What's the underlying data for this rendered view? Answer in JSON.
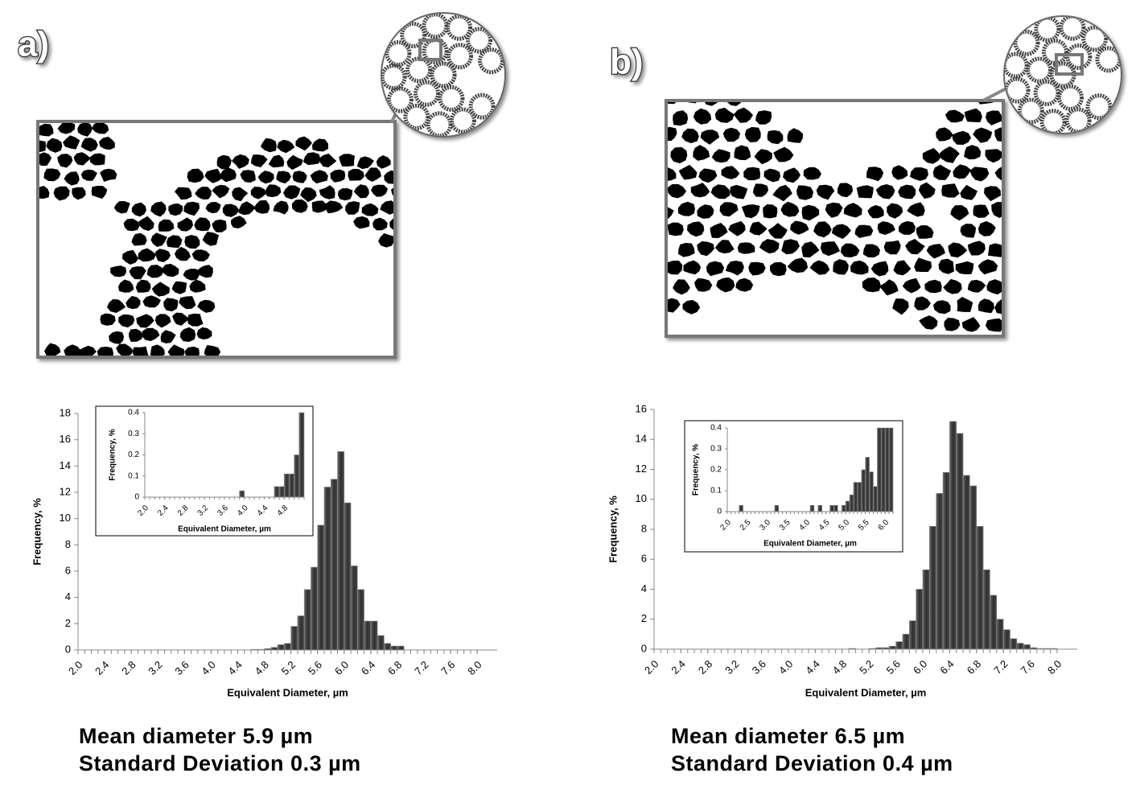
{
  "panels": [
    {
      "label": "a)",
      "caption": [
        "Mean diameter 5.9 µm",
        "Standard Deviation 0.3 µm"
      ]
    },
    {
      "label": "b)",
      "caption": [
        "Mean diameter 6.5 µm",
        "Standard Deviation 0.4 µm"
      ]
    }
  ],
  "chart_data": [
    {
      "type": "histogram",
      "color": "#3b3b3b",
      "xlabel": "Equivalent Diameter, µm",
      "ylabel": "Frequency, %",
      "bins": [
        2,
        2.1,
        2.2,
        2.3,
        2.4,
        2.5,
        2.6,
        2.7,
        2.8,
        2.9,
        3,
        3.1,
        3.2,
        3.3,
        3.4,
        3.5,
        3.6,
        3.7,
        3.8,
        3.9,
        4,
        4.1,
        4.2,
        4.3,
        4.4,
        4.5,
        4.6,
        4.7,
        4.8,
        4.9,
        5,
        5.1,
        5.2,
        5.3,
        5.4,
        5.5,
        5.6,
        5.7,
        5.8,
        5.9,
        6,
        6.1,
        6.2,
        6.3,
        6.4,
        6.5,
        6.6,
        6.7,
        6.8,
        6.9,
        7,
        7.1,
        7.2,
        7.3,
        7.4,
        7.5,
        7.6,
        7.7,
        7.8,
        7.9,
        8
      ],
      "values": [
        0,
        0,
        0,
        0,
        0,
        0,
        0,
        0,
        0,
        0,
        0,
        0,
        0,
        0,
        0,
        0,
        0,
        0,
        0,
        0,
        0,
        0,
        0,
        0,
        0,
        0,
        0.05,
        0.05,
        0.1,
        0.2,
        0.4,
        0.5,
        1.8,
        2.6,
        4.6,
        6.3,
        9.5,
        12.4,
        13.0,
        15.1,
        11.2,
        6.4,
        4.6,
        2.2,
        2.2,
        1.1,
        0.5,
        0.3,
        0.3,
        0,
        0,
        0,
        0,
        0,
        0,
        0,
        0,
        0,
        0,
        0
      ],
      "xlim": [
        2,
        8.3
      ],
      "ylim": [
        0,
        18
      ],
      "xticks": [
        {
          "value": 2,
          "label": "2.0"
        },
        2.4,
        2.8,
        3.2,
        3.6,
        {
          "value": 4,
          "label": "4.0"
        },
        4.4,
        4.8,
        5.2,
        5.6,
        {
          "value": 6,
          "label": "6.0"
        },
        6.4,
        6.8,
        7.2,
        7.6,
        {
          "value": 8,
          "label": "8.0"
        }
      ],
      "yticks": [
        0,
        2,
        4,
        6,
        8,
        10,
        12,
        14,
        16,
        18
      ]
    },
    {
      "type": "histogram",
      "color": "#3b3b3b",
      "xlabel": "Equivalent Diameter, µm",
      "ylabel": "Frequency, %",
      "bins": [
        2,
        2.1,
        2.2,
        2.3,
        2.4,
        2.5,
        2.6,
        2.7,
        2.8,
        2.9,
        3,
        3.1,
        3.2,
        3.3,
        3.4,
        3.5,
        3.6,
        3.7,
        3.8,
        3.9,
        4,
        4.1,
        4.2,
        4.3,
        4.4,
        4.5,
        4.6,
        4.7,
        4.8,
        4.9,
        5,
        5.1,
        5.2
      ],
      "values": [
        0,
        0,
        0,
        0,
        0,
        0,
        0,
        0,
        0,
        0,
        0,
        0,
        0,
        0,
        0,
        0,
        0,
        0,
        0,
        0.03,
        0,
        0,
        0,
        0,
        0,
        0,
        0.05,
        0.05,
        0.11,
        0.11,
        0.2,
        0.4
      ],
      "xlim": [
        2,
        5.2
      ],
      "ylim": [
        0,
        0.4
      ],
      "xticks": [
        {
          "value": 2,
          "label": "2.0"
        },
        2.4,
        2.8,
        3.2,
        3.6,
        {
          "value": 4,
          "label": "4.0"
        },
        4.4,
        4.8
      ],
      "yticks": [
        0,
        0.1,
        0.2,
        0.3,
        0.4
      ]
    },
    {
      "type": "histogram",
      "color": "#3b3b3b",
      "xlabel": "Equivalent Diameter, µm",
      "ylabel": "Frequency, %",
      "bins": [
        2,
        2.1,
        2.2,
        2.3,
        2.4,
        2.5,
        2.6,
        2.7,
        2.8,
        2.9,
        3,
        3.1,
        3.2,
        3.3,
        3.4,
        3.5,
        3.6,
        3.7,
        3.8,
        3.9,
        4,
        4.1,
        4.2,
        4.3,
        4.4,
        4.5,
        4.6,
        4.7,
        4.8,
        4.9,
        5,
        5.1,
        5.2,
        5.3,
        5.4,
        5.5,
        5.6,
        5.7,
        5.8,
        5.9,
        6,
        6.1,
        6.2,
        6.3,
        6.4,
        6.5,
        6.6,
        6.7,
        6.8,
        6.9,
        7,
        7.1,
        7.2,
        7.3,
        7.4,
        7.5,
        7.6,
        7.7,
        7.8,
        7.9,
        8
      ],
      "values": [
        0,
        0,
        0,
        0,
        0,
        0,
        0,
        0,
        0,
        0,
        0,
        0,
        0,
        0,
        0,
        0,
        0,
        0,
        0,
        0,
        0,
        0,
        0,
        0,
        0,
        0,
        0,
        0,
        0,
        0.05,
        0,
        0,
        0.05,
        0.1,
        0.1,
        0.2,
        0.5,
        1.0,
        1.9,
        4.0,
        5.3,
        8.2,
        10.4,
        11.8,
        15.2,
        14.4,
        11.6,
        10.9,
        8.2,
        5.3,
        3.6,
        2.0,
        1.3,
        0.7,
        0.4,
        0.3,
        0.1,
        0.05,
        0.05,
        0.05
      ],
      "xlim": [
        2,
        8.3
      ],
      "ylim": [
        0,
        16
      ],
      "xticks": [
        {
          "value": 2,
          "label": "2.0"
        },
        2.4,
        2.8,
        3.2,
        3.6,
        {
          "value": 4,
          "label": "4.0"
        },
        4.4,
        4.8,
        5.2,
        5.6,
        {
          "value": 6,
          "label": "6.0"
        },
        6.4,
        6.8,
        7.2,
        7.6,
        {
          "value": 8,
          "label": "8.0"
        }
      ],
      "yticks": [
        0,
        2,
        4,
        6,
        8,
        10,
        12,
        14,
        16
      ]
    },
    {
      "type": "histogram",
      "color": "#3b3b3b",
      "xlabel": "Equivalent Diameter, µm",
      "ylabel": "Frequency, %",
      "bins": [
        2,
        2.1,
        2.2,
        2.3,
        2.4,
        2.5,
        2.6,
        2.7,
        2.8,
        2.9,
        3,
        3.1,
        3.2,
        3.3,
        3.4,
        3.5,
        3.6,
        3.7,
        3.8,
        3.9,
        4,
        4.1,
        4.2,
        4.3,
        4.4,
        4.5,
        4.6,
        4.7,
        4.8,
        4.9,
        5,
        5.1,
        5.2,
        5.3,
        5.4,
        5.5,
        5.6,
        5.7,
        5.8,
        5.9,
        6,
        6.1,
        6.2
      ],
      "values": [
        0,
        0,
        0,
        0.03,
        0,
        0,
        0,
        0,
        0,
        0,
        0,
        0,
        0.03,
        0,
        0,
        0,
        0,
        0,
        0,
        0,
        0,
        0.03,
        0,
        0.03,
        0,
        0,
        0.03,
        0.03,
        0,
        0.03,
        0.05,
        0.08,
        0.14,
        0.14,
        0.2,
        0.26,
        0.19,
        0.12,
        0.4,
        0.4,
        0.4,
        0.4
      ],
      "xlim": [
        2,
        6.2
      ],
      "ylim": [
        0,
        0.4
      ],
      "xticks": [
        {
          "value": 2,
          "label": "2.0"
        },
        2.5,
        {
          "value": 3,
          "label": "3.0"
        },
        3.5,
        {
          "value": 4,
          "label": "4.0"
        },
        4.5,
        {
          "value": 5,
          "label": "5.0"
        },
        5.5,
        {
          "value": 6,
          "label": "6.0"
        }
      ],
      "yticks": [
        0,
        0.1,
        0.2,
        0.3,
        0.4
      ]
    }
  ]
}
